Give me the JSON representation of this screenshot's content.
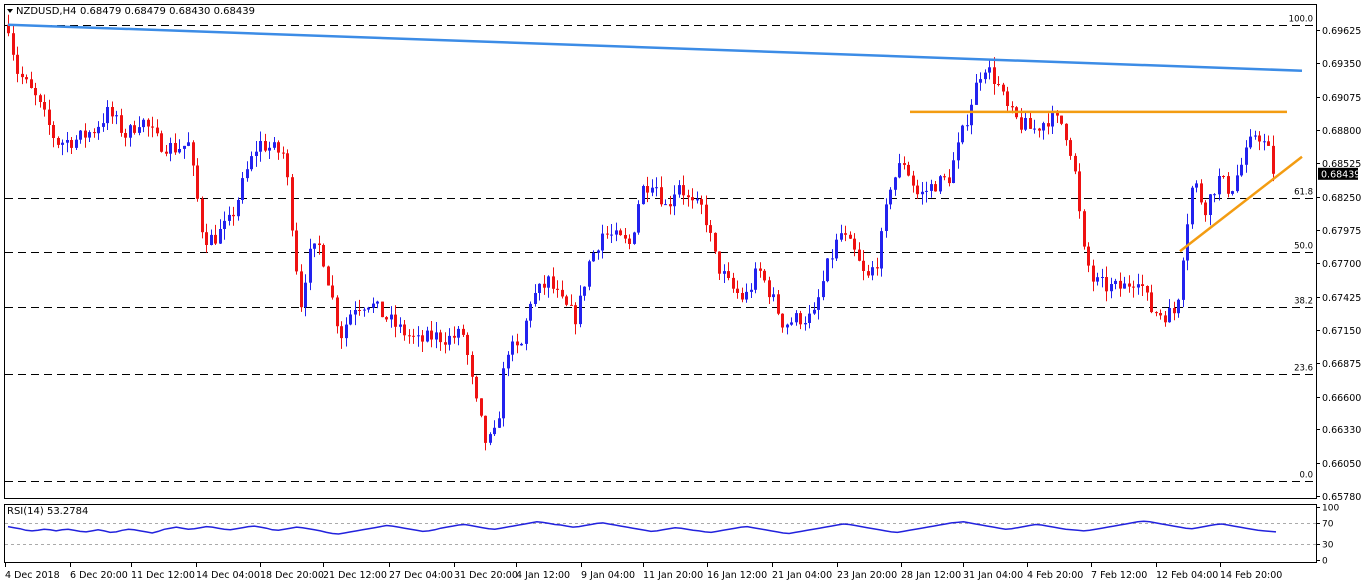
{
  "header": {
    "symbol": "NZDUSD,H4",
    "ohlc": "0.68479 0.68479 0.68430 0.68439"
  },
  "rsi_header": {
    "label": "RSI(14) 53.2784"
  },
  "colors": {
    "up": "#2222ee",
    "down": "#ee1111",
    "trend_down": "#3c8ce6",
    "resistance": "#f39c12",
    "support": "#f39c12",
    "rsi_line": "#2222dd",
    "price_tag": "#000000"
  },
  "chart_data": [
    {
      "type": "candlestick",
      "title": "NZDUSD,H4",
      "ylim": [
        0.6578,
        0.6975
      ],
      "y_ticks": [
        "0.69625",
        "0.69350",
        "0.69075",
        "0.68800",
        "0.68525",
        "0.68250",
        "0.67975",
        "0.67700",
        "0.67425",
        "0.67150",
        "0.66875",
        "0.66600",
        "0.66330",
        "0.66050",
        "0.65780"
      ],
      "current_price": "0.68439",
      "x_ticks": [
        "4 Dec 2018",
        "6 Dec 20:00",
        "11 Dec 12:00",
        "14 Dec 04:00",
        "18 Dec 20:00",
        "21 Dec 12:00",
        "27 Dec 04:00",
        "31 Dec 20:00",
        "4 Jan 12:00",
        "9 Jan 04:00",
        "11 Jan 20:00",
        "16 Jan 12:00",
        "21 Jan 04:00",
        "23 Jan 20:00",
        "28 Jan 12:00",
        "31 Jan 04:00",
        "4 Feb 20:00",
        "7 Feb 12:00",
        "12 Feb 04:00",
        "14 Feb 20:00"
      ],
      "grid": false,
      "fibonacci": [
        {
          "level": "100.0",
          "price": 0.6967
        },
        {
          "level": "61.8",
          "price": 0.6824
        },
        {
          "level": "50.0",
          "price": 0.6779
        },
        {
          "level": "38.2",
          "price": 0.6734
        },
        {
          "level": "23.6",
          "price": 0.6679
        },
        {
          "level": "0.0",
          "price": 0.659
        }
      ],
      "trendlines": [
        {
          "role": "falling-resistance",
          "from": [
            "4 Dec 2018",
            0.6967
          ],
          "to": [
            "15 Feb",
            0.6929
          ]
        },
        {
          "role": "horizontal-resistance",
          "from": [
            "29 Jan",
            0.6895
          ],
          "to": [
            "15 Feb",
            0.6895
          ]
        },
        {
          "role": "rising-support",
          "from": [
            "12 Feb",
            0.678
          ],
          "to": [
            "15 Feb",
            0.6858
          ]
        }
      ],
      "path_points": [
        [
          0,
          0.6967
        ],
        [
          8,
          0.693
        ],
        [
          28,
          0.6905
        ],
        [
          48,
          0.687
        ],
        [
          68,
          0.6872
        ],
        [
          85,
          0.688
        ],
        [
          100,
          0.6895
        ],
        [
          118,
          0.6875
        ],
        [
          132,
          0.689
        ],
        [
          150,
          0.687
        ],
        [
          165,
          0.6865
        ],
        [
          180,
          0.6868
        ],
        [
          195,
          0.6792
        ],
        [
          205,
          0.679
        ],
        [
          222,
          0.6805
        ],
        [
          238,
          0.6845
        ],
        [
          250,
          0.687
        ],
        [
          262,
          0.6865
        ],
        [
          276,
          0.686
        ],
        [
          284,
          0.68
        ],
        [
          292,
          0.6735
        ],
        [
          300,
          0.6775
        ],
        [
          312,
          0.6785
        ],
        [
          322,
          0.6748
        ],
        [
          332,
          0.671
        ],
        [
          345,
          0.6735
        ],
        [
          360,
          0.6738
        ],
        [
          378,
          0.6725
        ],
        [
          392,
          0.6715
        ],
        [
          410,
          0.6705
        ],
        [
          425,
          0.671
        ],
        [
          440,
          0.6708
        ],
        [
          455,
          0.6712
        ],
        [
          466,
          0.666
        ],
        [
          478,
          0.662
        ],
        [
          488,
          0.663
        ],
        [
          498,
          0.67
        ],
        [
          512,
          0.6698
        ],
        [
          522,
          0.674
        ],
        [
          540,
          0.6755
        ],
        [
          555,
          0.6735
        ],
        [
          568,
          0.6725
        ],
        [
          580,
          0.677
        ],
        [
          594,
          0.6795
        ],
        [
          610,
          0.679
        ],
        [
          622,
          0.6785
        ],
        [
          632,
          0.683
        ],
        [
          645,
          0.684
        ],
        [
          658,
          0.6815
        ],
        [
          670,
          0.6838
        ],
        [
          682,
          0.6818
        ],
        [
          695,
          0.6815
        ],
        [
          708,
          0.677
        ],
        [
          722,
          0.675
        ],
        [
          736,
          0.674
        ],
        [
          750,
          0.6765
        ],
        [
          762,
          0.6745
        ],
        [
          775,
          0.672
        ],
        [
          790,
          0.6725
        ],
        [
          805,
          0.6725
        ],
        [
          818,
          0.6765
        ],
        [
          832,
          0.6795
        ],
        [
          845,
          0.678
        ],
        [
          858,
          0.6755
        ],
        [
          870,
          0.6775
        ],
        [
          882,
          0.6835
        ],
        [
          895,
          0.6855
        ],
        [
          910,
          0.6825
        ],
        [
          925,
          0.6835
        ],
        [
          940,
          0.684
        ],
        [
          955,
          0.688
        ],
        [
          965,
          0.691
        ],
        [
          975,
          0.6935
        ],
        [
          988,
          0.692
        ],
        [
          1000,
          0.6895
        ],
        [
          1012,
          0.6885
        ],
        [
          1025,
          0.688
        ],
        [
          1040,
          0.689
        ],
        [
          1055,
          0.6885
        ],
        [
          1065,
          0.6855
        ],
        [
          1075,
          0.678
        ],
        [
          1085,
          0.6755
        ],
        [
          1100,
          0.675
        ],
        [
          1115,
          0.675
        ],
        [
          1130,
          0.676
        ],
        [
          1142,
          0.6732
        ],
        [
          1155,
          0.6728
        ],
        [
          1168,
          0.673
        ],
        [
          1176,
          0.679
        ],
        [
          1185,
          0.684
        ],
        [
          1196,
          0.6815
        ],
        [
          1210,
          0.684
        ],
        [
          1222,
          0.683
        ],
        [
          1235,
          0.6855
        ],
        [
          1248,
          0.688
        ],
        [
          1260,
          0.6862
        ],
        [
          1270,
          0.6848
        ],
        [
          1276,
          0.6844
        ]
      ]
    },
    {
      "type": "line",
      "title": "RSI(14) 53.2784",
      "ylim": [
        0,
        100
      ],
      "y_ticks": [
        "100",
        "70",
        "30",
        "0"
      ],
      "levels": [
        70,
        30
      ],
      "values": [
        63,
        61,
        59,
        56,
        55,
        56,
        58,
        57,
        55,
        57,
        58,
        56,
        54,
        53,
        55,
        57,
        55,
        52,
        53,
        56,
        58,
        57,
        55,
        53,
        51,
        54,
        58,
        60,
        62,
        60,
        58,
        59,
        61,
        63,
        62,
        60,
        58,
        57,
        59,
        61,
        63,
        64,
        62,
        60,
        57,
        56,
        58,
        60,
        62,
        61,
        59,
        57,
        55,
        52,
        50,
        49,
        51,
        53,
        55,
        57,
        59,
        61,
        63,
        65,
        64,
        62,
        60,
        58,
        56,
        54,
        55,
        57,
        60,
        62,
        64,
        66,
        67,
        65,
        63,
        61,
        59,
        58,
        60,
        62,
        64,
        66,
        68,
        70,
        72,
        71,
        69,
        67,
        66,
        64,
        62,
        63,
        65,
        67,
        69,
        70,
        68,
        66,
        64,
        62,
        60,
        58,
        56,
        54,
        55,
        57,
        59,
        61,
        60,
        58,
        56,
        55,
        53,
        52,
        54,
        56,
        58,
        60,
        62,
        63,
        61,
        59,
        57,
        55,
        53,
        51,
        50,
        52,
        54,
        56,
        58,
        60,
        62,
        64,
        66,
        68,
        67,
        65,
        63,
        61,
        59,
        57,
        55,
        53,
        52,
        54,
        56,
        58,
        60,
        62,
        64,
        66,
        68,
        70,
        71,
        72,
        70,
        68,
        66,
        64,
        62,
        60,
        58,
        59,
        61,
        63,
        65,
        67,
        66,
        64,
        62,
        60,
        58,
        57,
        56,
        55,
        56,
        58,
        60,
        62,
        64,
        66,
        68,
        70,
        72,
        73,
        72,
        70,
        68,
        66,
        64,
        62,
        60,
        59,
        61,
        63,
        65,
        67,
        68,
        66,
        64,
        62,
        60,
        58,
        56,
        55,
        54,
        53
      ]
    }
  ]
}
